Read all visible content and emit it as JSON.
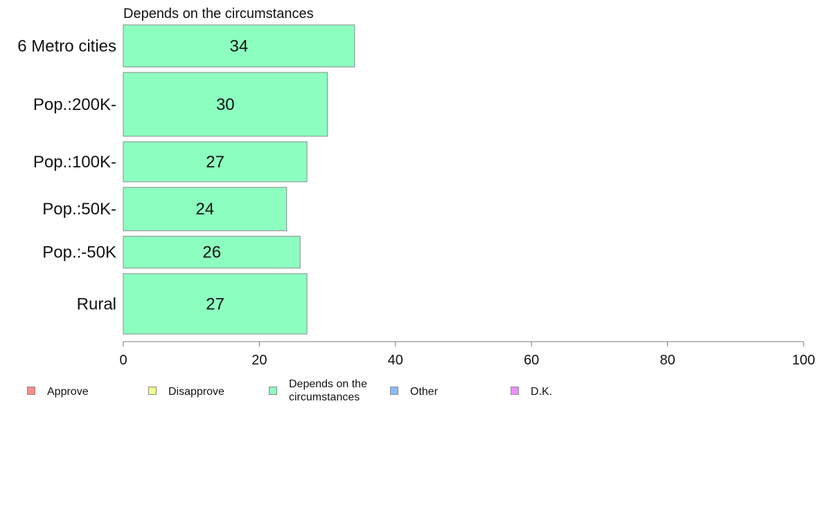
{
  "chart_data": {
    "type": "bar",
    "orientation": "horizontal",
    "title": "Depends on the circumstances",
    "categories": [
      "6 Metro cities",
      "Pop.:200K-",
      "Pop.:100K-",
      "Pop.:50K-",
      "Pop.:-50K",
      "Rural"
    ],
    "values": [
      34,
      30,
      27,
      24,
      26,
      27
    ],
    "relative_weights": [
      0.62,
      0.94,
      0.59,
      0.64,
      0.47,
      0.89
    ],
    "xlim": [
      0,
      100
    ],
    "xticks": [
      "0",
      "20",
      "40",
      "60",
      "80",
      "100"
    ],
    "bar_color": "#8cffc0",
    "legend_position": "bottom",
    "legend": [
      {
        "label": "Approve",
        "color": "#ff8c8c"
      },
      {
        "label": "Disapprove",
        "color": "#f0ff8c"
      },
      {
        "label": "Depends on the circumstances",
        "color": "#8cffc0"
      },
      {
        "label": "Other",
        "color": "#8cbcff"
      },
      {
        "label": "D.K.",
        "color": "#f08cff"
      }
    ]
  }
}
